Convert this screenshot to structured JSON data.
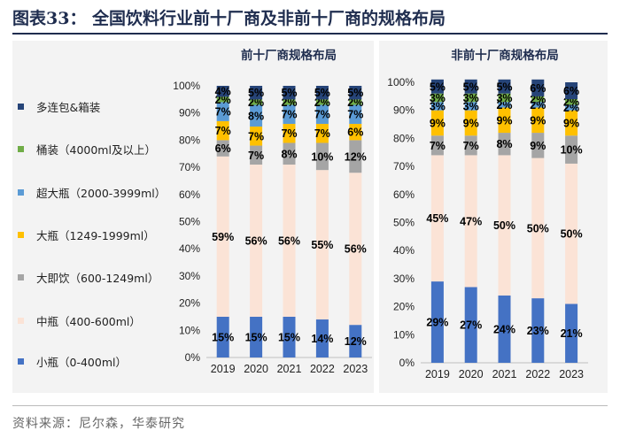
{
  "figure": {
    "title": "图表33： 全国饮料行业前十厂商及非前十厂商的规格布局",
    "source": "资料来源：尼尔森，华泰研究"
  },
  "colors": {
    "small": "#4472c4",
    "medium": "#fbe3d6",
    "da_ji_yin": "#a5a5a5",
    "large": "#ffc000",
    "extra_large": "#5b9bd5",
    "bucket": "#70ad47",
    "multipack": "#264478",
    "panel_bg": "#f2f2f2",
    "axis": "#bfbfbf"
  },
  "legend": {
    "items": [
      {
        "key": "multipack",
        "label": "多连包&箱装"
      },
      {
        "key": "bucket",
        "label": "桶装（4000ml及以上）"
      },
      {
        "key": "extra_large",
        "label": "超大瓶（2000-3999ml）"
      },
      {
        "key": "large",
        "label": "大瓶（1249-1999ml）"
      },
      {
        "key": "da_ji_yin",
        "label": "大即饮（600-1249ml）"
      },
      {
        "key": "medium",
        "label": "中瓶（400-600ml）"
      },
      {
        "key": "small",
        "label": "小瓶（0-400ml）"
      }
    ]
  },
  "chart_data": [
    {
      "type": "bar",
      "stacked": true,
      "title": "前十厂商规格布局",
      "categories": [
        "2019",
        "2020",
        "2021",
        "2022",
        "2023"
      ],
      "ylim": [
        0,
        100
      ],
      "yticks": [
        "0%",
        "10%",
        "20%",
        "30%",
        "40%",
        "50%",
        "60%",
        "70%",
        "80%",
        "90%",
        "100%"
      ],
      "series": [
        {
          "key": "small",
          "name": "小瓶（0-400ml）",
          "values": [
            15,
            15,
            15,
            14,
            12
          ],
          "labels": [
            "15%",
            "15%",
            "15%",
            "14%",
            "12%"
          ]
        },
        {
          "key": "medium",
          "name": "中瓶（400-600ml）",
          "values": [
            59,
            56,
            56,
            55,
            56
          ],
          "labels": [
            "59%",
            "56%",
            "56%",
            "55%",
            "56%"
          ]
        },
        {
          "key": "da_ji_yin",
          "name": "大即饮（600-1249ml）",
          "values": [
            6,
            7,
            8,
            10,
            12
          ],
          "labels": [
            "6%",
            "7%",
            "8%",
            "10%",
            "12%"
          ]
        },
        {
          "key": "large",
          "name": "大瓶（1249-1999ml）",
          "values": [
            7,
            7,
            7,
            7,
            6
          ],
          "labels": [
            "7%",
            "7%",
            "7%",
            "7%",
            "6%"
          ]
        },
        {
          "key": "extra_large",
          "name": "超大瓶（2000-3999ml）",
          "values": [
            7,
            8,
            7,
            7,
            7
          ],
          "labels": [
            "7%",
            "8%",
            "7%",
            "7%",
            "7%"
          ]
        },
        {
          "key": "bucket",
          "name": "桶装（4000ml及以上）",
          "values": [
            2,
            2,
            2,
            2,
            2
          ],
          "labels": [
            "2%",
            "2%",
            "2%",
            "2%",
            "2%"
          ]
        },
        {
          "key": "multipack",
          "name": "多连包&箱装",
          "values": [
            4,
            5,
            5,
            5,
            5
          ],
          "labels": [
            "4%",
            "5%",
            "5%",
            "5%",
            "5%"
          ]
        }
      ]
    },
    {
      "type": "bar",
      "stacked": true,
      "title": "非前十厂商规格布局",
      "categories": [
        "2019",
        "2020",
        "2021",
        "2022",
        "2023"
      ],
      "ylim": [
        0,
        100
      ],
      "yticks": [
        "0%",
        "10%",
        "20%",
        "30%",
        "40%",
        "50%",
        "60%",
        "70%",
        "80%",
        "90%",
        "100%"
      ],
      "series": [
        {
          "key": "small",
          "name": "小瓶（0-400ml）",
          "values": [
            29,
            27,
            24,
            23,
            21
          ],
          "labels": [
            "29%",
            "27%",
            "24%",
            "23%",
            "21%"
          ]
        },
        {
          "key": "medium",
          "name": "中瓶（400-600ml）",
          "values": [
            45,
            47,
            50,
            50,
            50
          ],
          "labels": [
            "45%",
            "47%",
            "50%",
            "50%",
            "50%"
          ]
        },
        {
          "key": "da_ji_yin",
          "name": "大即饮（600-1249ml）",
          "values": [
            7,
            7,
            8,
            9,
            10
          ],
          "labels": [
            "7%",
            "7%",
            "8%",
            "9%",
            "10%"
          ]
        },
        {
          "key": "large",
          "name": "大瓶（1249-1999ml）",
          "values": [
            9,
            9,
            9,
            9,
            9
          ],
          "labels": [
            "9%",
            "9%",
            "9%",
            "9%",
            "9%"
          ]
        },
        {
          "key": "extra_large",
          "name": "超大瓶（2000-3999ml）",
          "values": [
            3,
            3,
            2,
            2,
            2
          ],
          "labels": [
            "3%",
            "3%",
            "2%",
            "2%",
            "2%"
          ]
        },
        {
          "key": "bucket",
          "name": "桶装（4000ml及以上）",
          "values": [
            3,
            3,
            3,
            2,
            2
          ],
          "labels": [
            "3%",
            "3%",
            "3%",
            "2%",
            "2%"
          ]
        },
        {
          "key": "multipack",
          "name": "多连包&箱装",
          "values": [
            5,
            5,
            5,
            6,
            6
          ],
          "labels": [
            "5%",
            "5%",
            "5%",
            "6%",
            "6%"
          ]
        }
      ]
    }
  ]
}
